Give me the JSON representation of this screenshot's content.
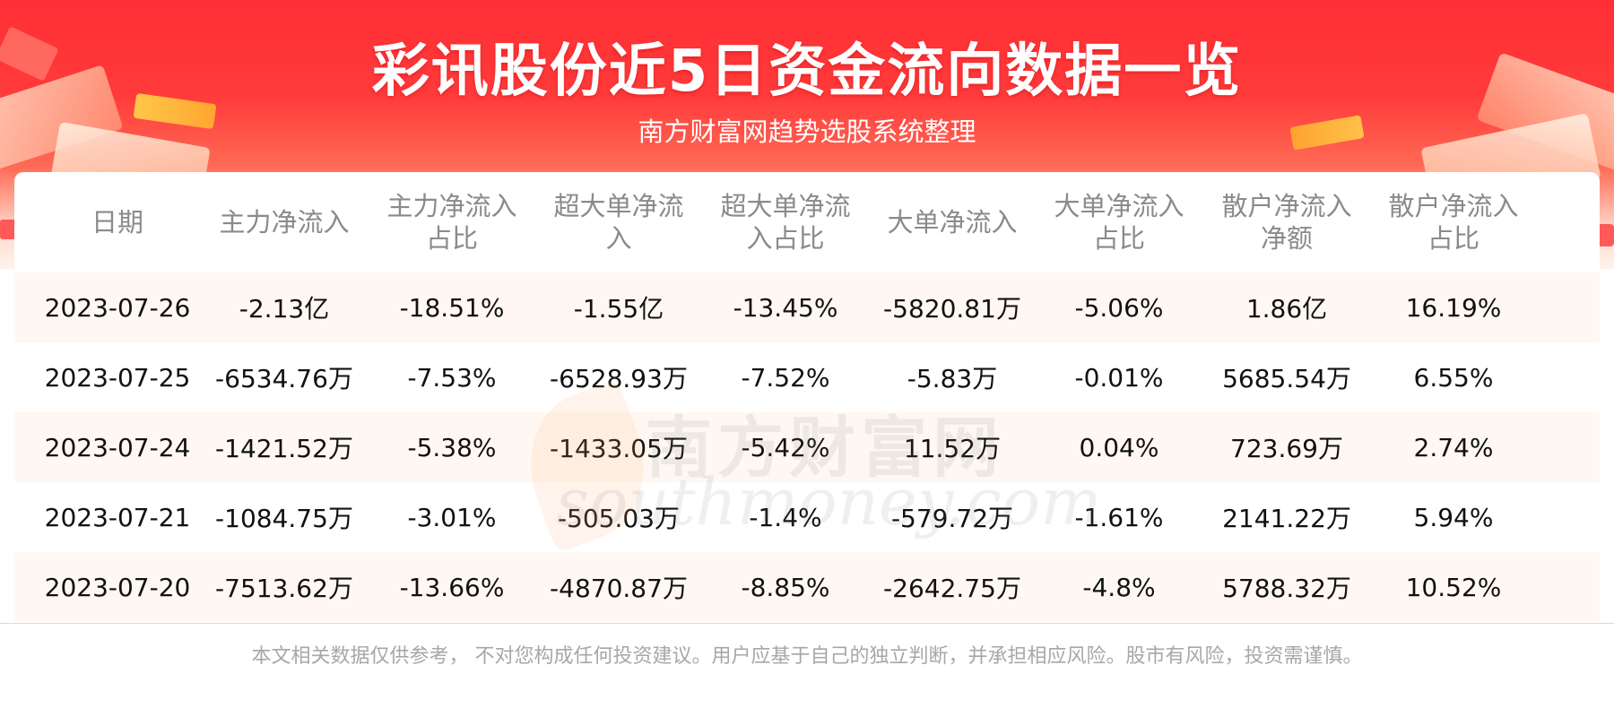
{
  "header": {
    "title": "彩讯股份近5日资金流向数据一览",
    "subtitle": "南方财富网趋势选股系统整理"
  },
  "table": {
    "columns": [
      "日期",
      "主力净流入",
      "主力净流入\n占比",
      "超大单净流\n入",
      "超大单净流\n入占比",
      "大单净流入",
      "大单净流入\n占比",
      "散户净流入\n净额",
      "散户净流入\n占比"
    ],
    "rows": [
      [
        "2023-07-26",
        "-2.13亿",
        "-18.51%",
        "-1.55亿",
        "-13.45%",
        "-5820.81万",
        "-5.06%",
        "1.86亿",
        "16.19%"
      ],
      [
        "2023-07-25",
        "-6534.76万",
        "-7.53%",
        "-6528.93万",
        "-7.52%",
        "-5.83万",
        "-0.01%",
        "5685.54万",
        "6.55%"
      ],
      [
        "2023-07-24",
        "-1421.52万",
        "-5.38%",
        "-1433.05万",
        "-5.42%",
        "11.52万",
        "0.04%",
        "723.69万",
        "2.74%"
      ],
      [
        "2023-07-21",
        "-1084.75万",
        "-3.01%",
        "-505.03万",
        "-1.4%",
        "-579.72万",
        "-1.61%",
        "2141.22万",
        "5.94%"
      ],
      [
        "2023-07-20",
        "-7513.62万",
        "-13.66%",
        "-4870.87万",
        "-8.85%",
        "-2642.75万",
        "-4.8%",
        "5788.32万",
        "10.52%"
      ]
    ]
  },
  "watermark": {
    "cn": "南方财富网",
    "en": "southmoney.com"
  },
  "footer": {
    "disclaimer": "本文相关数据仅供参考， 不对您构成任何投资建议。用户应基于自己的独立判断，并承担相应风险。股市有风险，投资需谨慎。"
  },
  "colors": {
    "banner_red": "#ff2f35",
    "row_stripe": "#fff8f2",
    "header_text": "#8a8a8a"
  }
}
